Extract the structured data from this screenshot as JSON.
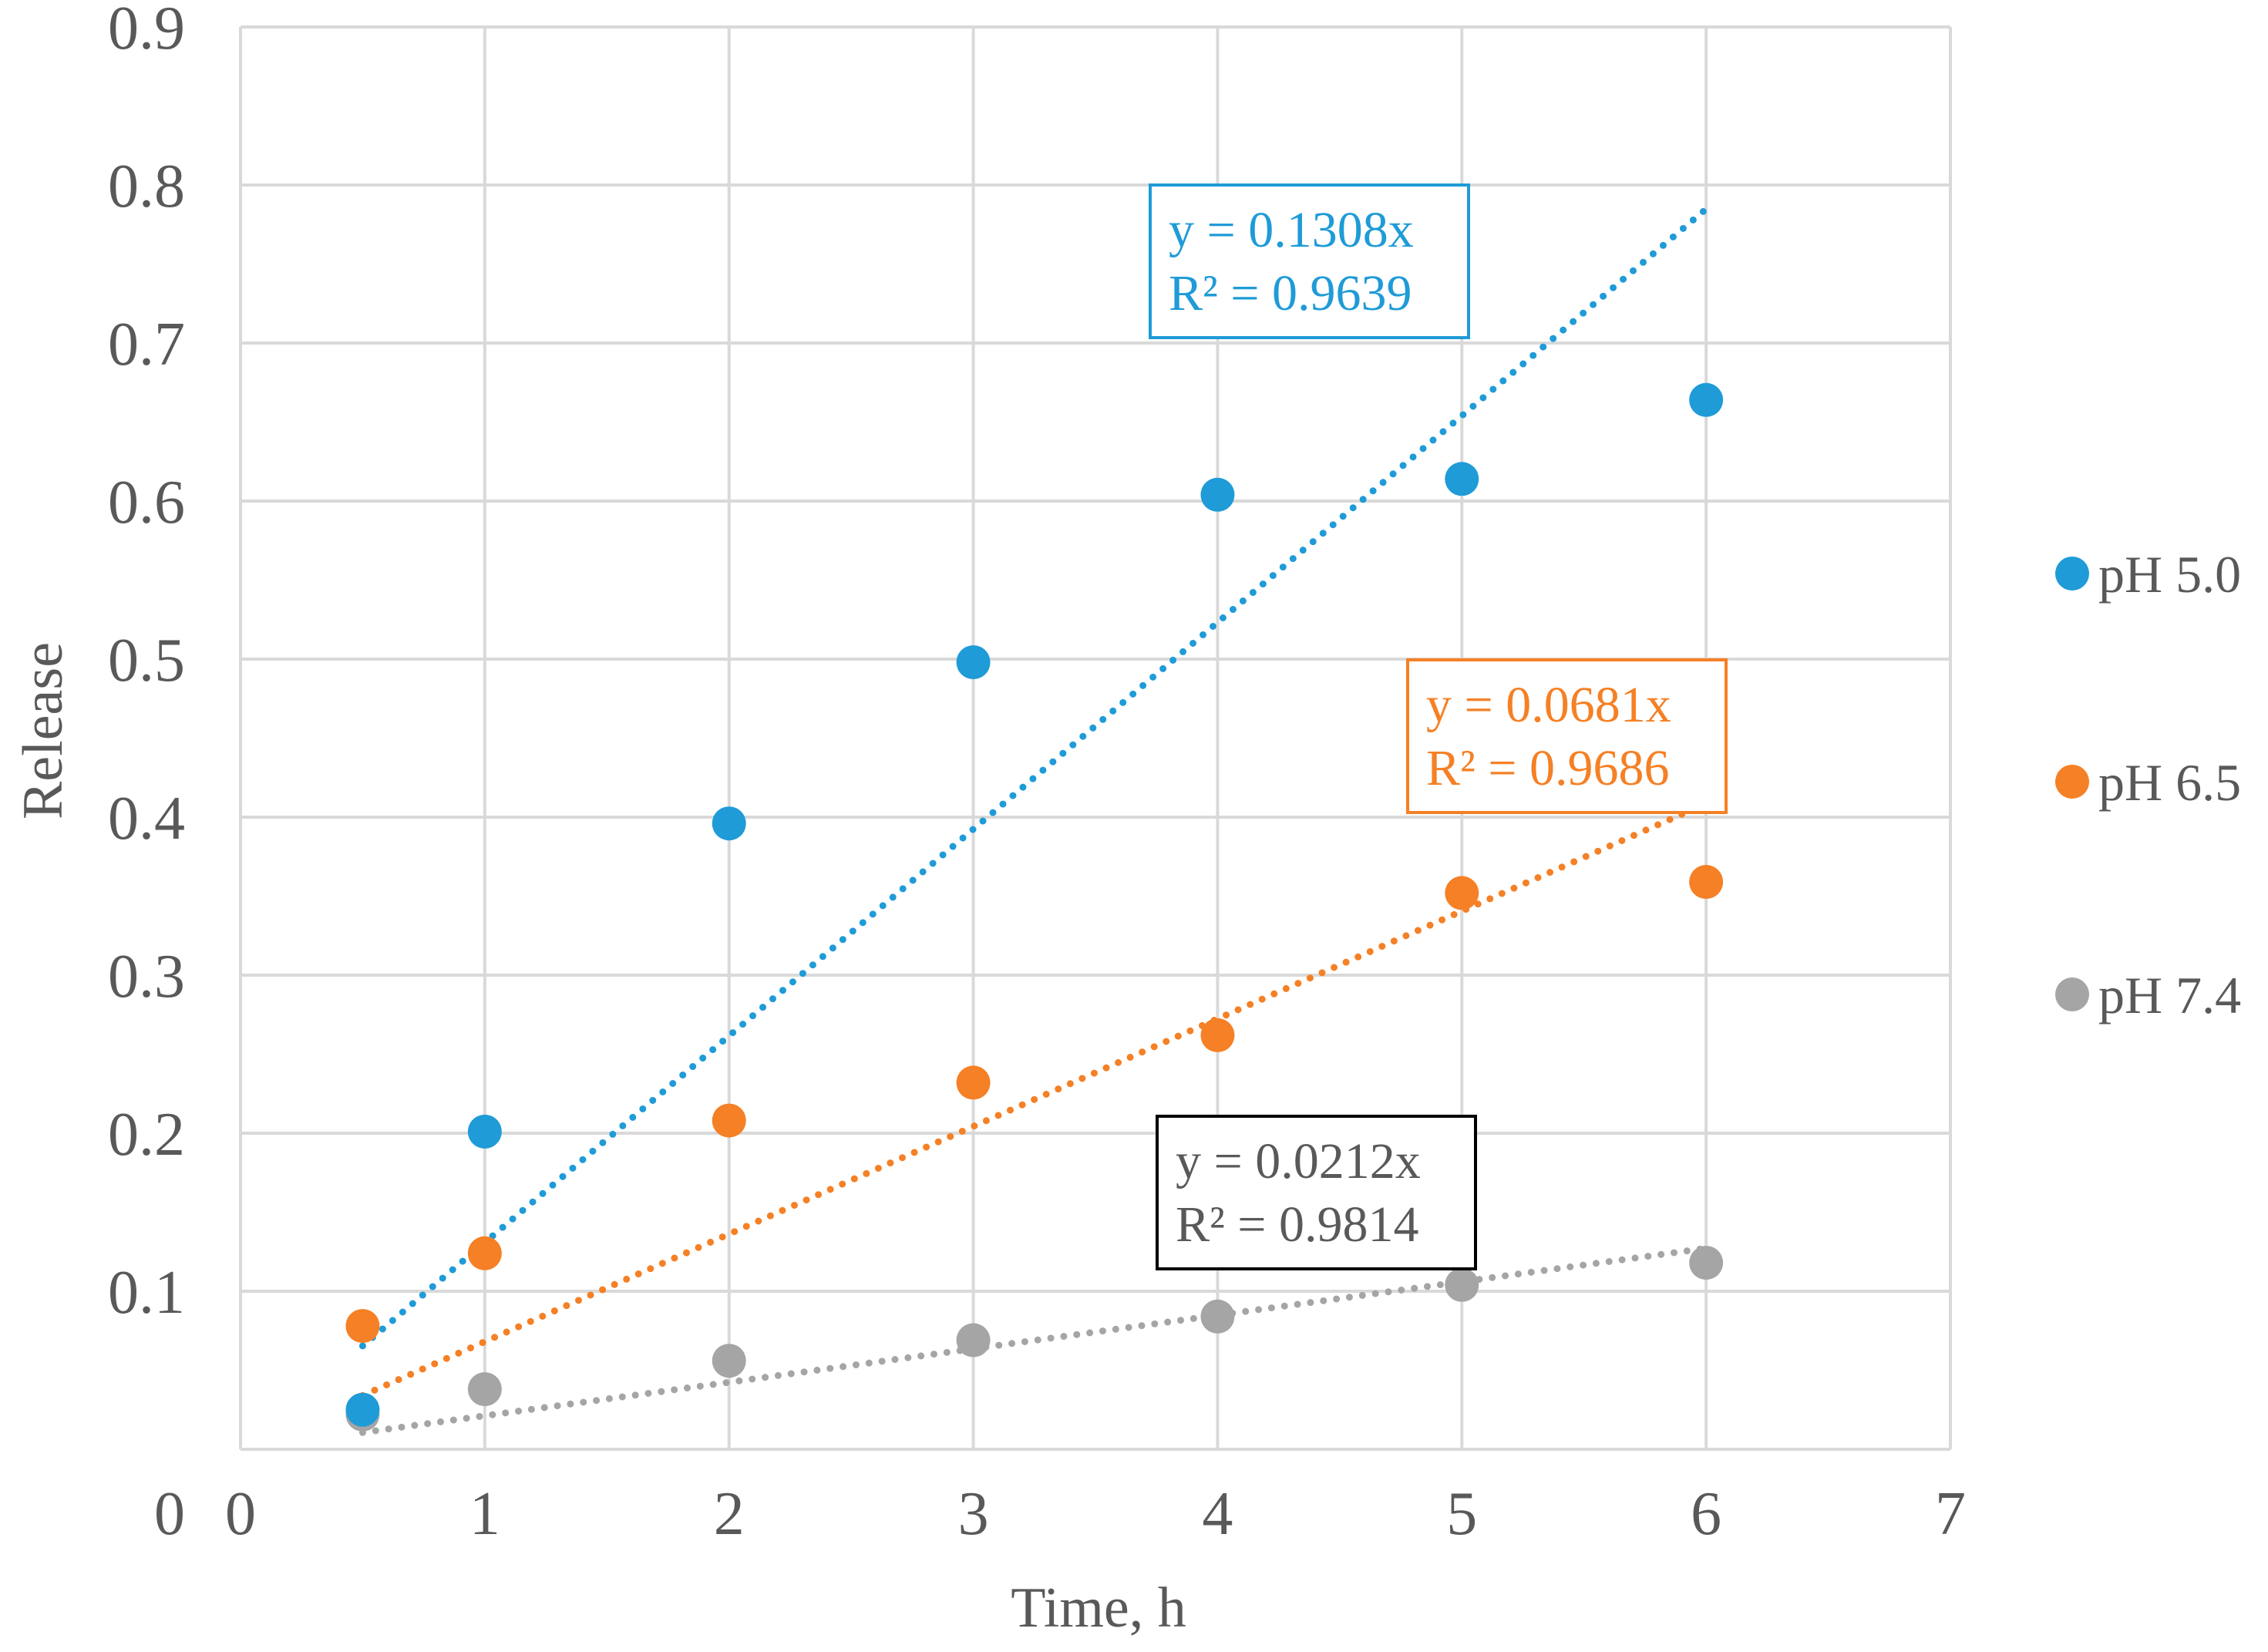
{
  "chart_data": {
    "type": "scatter",
    "title": "",
    "xlabel": "Time, h",
    "ylabel": "Release",
    "xlim": [
      0,
      7
    ],
    "ylim": [
      0,
      0.9
    ],
    "xticks": [
      0,
      1,
      2,
      3,
      4,
      5,
      6,
      7
    ],
    "yticks": [
      0,
      0.1,
      0.2,
      0.3,
      0.4,
      0.5,
      0.6,
      0.7,
      0.8,
      0.9
    ],
    "xtick_labels": [
      "0",
      "1",
      "2",
      "3",
      "4",
      "5",
      "6",
      "7"
    ],
    "ytick_labels": [
      "0",
      "0.1",
      "0.2",
      "0.3",
      "0.4",
      "0.5",
      "0.6",
      "0.7",
      "0.8",
      "0.9"
    ],
    "grid": true,
    "legend_position": "right",
    "x": [
      0.5,
      1,
      2,
      3,
      4,
      5,
      6
    ],
    "series": [
      {
        "name": "pH 5.0",
        "color": "#1f9bd7",
        "values": [
          0.025,
          0.201,
          0.396,
          0.498,
          0.604,
          0.614,
          0.664
        ],
        "trendline": {
          "slope": 0.1308,
          "equation": "y = 0.1308x",
          "r2": "R² = 0.9639"
        }
      },
      {
        "name": "pH 6.5",
        "color": "#f58025",
        "values": [
          0.078,
          0.124,
          0.208,
          0.232,
          0.262,
          0.352,
          0.359
        ],
        "trendline": {
          "slope": 0.0681,
          "equation": "y = 0.0681x",
          "r2": "R² = 0.9686"
        }
      },
      {
        "name": "pH 7.4",
        "color": "#a5a5a5",
        "values": [
          0.022,
          0.038,
          0.056,
          0.069,
          0.084,
          0.104,
          0.118
        ],
        "trendline": {
          "slope": 0.0212,
          "equation": "y = 0.0212x",
          "r2": "R² = 0.9814"
        }
      }
    ],
    "equation_box_colors": [
      "#1f9bd7",
      "#f58025",
      "#000000"
    ],
    "equation_text_colors": [
      "#1f9bd7",
      "#f58025",
      "#595959"
    ]
  }
}
